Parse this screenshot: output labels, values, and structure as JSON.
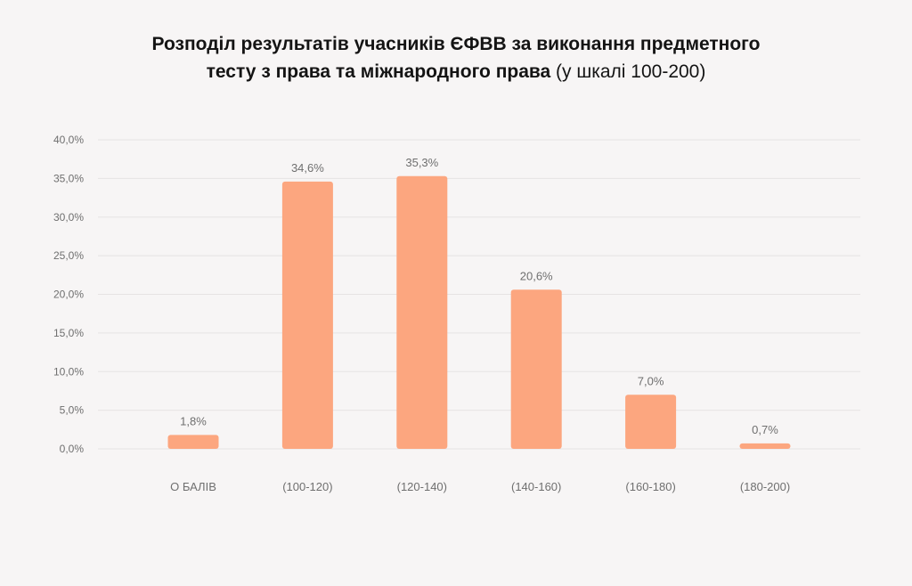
{
  "chart_data": {
    "type": "bar",
    "title_line1": "Розподіл результатів учасників ЄФВВ за виконання предметного",
    "title_line2_bold": "тесту з права та міжнародного права",
    "title_line2_normal": " (у шкалі 100-200)",
    "categories": [
      "О БАЛІВ",
      "(100-120)",
      "(120-140)",
      "(140-160)",
      "(160-180)",
      "(180-200)"
    ],
    "values": [
      1.8,
      34.6,
      35.3,
      20.6,
      7.0,
      0.7
    ],
    "data_labels": [
      "1,8%",
      "34,6%",
      "35,3%",
      "20,6%",
      "7,0%",
      "0,7%"
    ],
    "y_ticks": [
      0,
      5,
      10,
      15,
      20,
      25,
      30,
      35,
      40
    ],
    "y_tick_labels": [
      "0,0%",
      "5,0%",
      "10,0%",
      "15,0%",
      "20,0%",
      "25,0%",
      "30,0%",
      "35,0%",
      "40,0%"
    ],
    "ylim": [
      0,
      40
    ],
    "grid": true,
    "bar_color": "#fca67f",
    "grid_color": "#e6e3e3",
    "label_color": "#6f6f6f"
  }
}
